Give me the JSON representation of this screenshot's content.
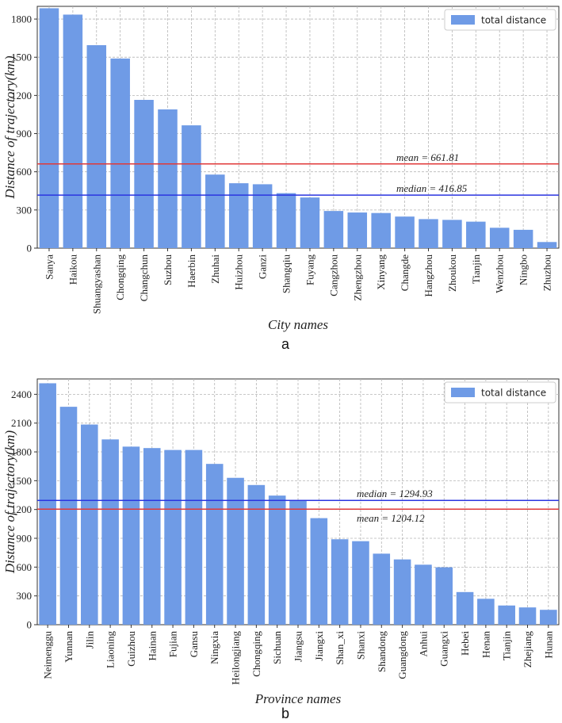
{
  "colors": {
    "bar": "#6f9be6",
    "mean": "#e03a3a",
    "median": "#2b35e0",
    "grid": "#b5b5b5"
  },
  "chart_data": [
    {
      "type": "bar",
      "caption": "a",
      "legend": "total distance",
      "xlabel": "City names",
      "ylabel": "Distance of trajectory(km)",
      "ylim": [
        0,
        1900
      ],
      "yticks": [
        0,
        300,
        600,
        900,
        1200,
        1500,
        1800
      ],
      "categories": [
        "Sanya",
        "Haikou",
        "Shuangyashan",
        "Chongqing",
        "Changchun",
        "Suzhou",
        "Haerbin",
        "Zhuhai",
        "Huizhou",
        "Ganzi",
        "Shangqiu",
        "Fuyang",
        "Cangzhou",
        "Zhengzhou",
        "Xinyang",
        "Changde",
        "Hangzhou",
        "Zhoukou",
        "Tianjin",
        "Wenzhou",
        "Ningbo",
        "Zhuzhou"
      ],
      "values": [
        1885,
        1835,
        1595,
        1490,
        1165,
        1090,
        965,
        578,
        510,
        502,
        432,
        398,
        292,
        280,
        276,
        248,
        228,
        222,
        208,
        160,
        144,
        48
      ],
      "mean": {
        "value": 661.81,
        "label": "mean = 661.81"
      },
      "median": {
        "value": 416.85,
        "label": "median = 416.85"
      }
    },
    {
      "type": "bar",
      "caption": "b",
      "legend": "total distance",
      "xlabel": "Province names",
      "ylabel": "Distance of trajectory(km)",
      "ylim": [
        0,
        2560
      ],
      "yticks": [
        0,
        300,
        600,
        900,
        1200,
        1500,
        1800,
        2100,
        2400
      ],
      "categories": [
        "Neimenggu",
        "Yunnan",
        "Jilin",
        "Liaoning",
        "Guizhou",
        "Hainan",
        "Fujian",
        "Gansu",
        "Ningxia",
        "Heilongjiang",
        "Chongqing",
        "Sichuan",
        "Jiangsu",
        "Jiangxi",
        "Shan_xi",
        "Shanxi",
        "Shandong",
        "Guangdong",
        "Anhui",
        "Guangxi",
        "Hebei",
        "Henan",
        "Tianjin",
        "Zhejiang",
        "Hunan"
      ],
      "values": [
        2515,
        2270,
        2085,
        1930,
        1855,
        1840,
        1820,
        1820,
        1675,
        1530,
        1455,
        1345,
        1300,
        1110,
        890,
        870,
        740,
        680,
        625,
        598,
        340,
        270,
        200,
        180,
        155
      ],
      "mean": {
        "value": 1204.12,
        "label": "mean = 1204.12"
      },
      "median": {
        "value": 1294.93,
        "label": "median = 1294.93"
      }
    }
  ]
}
